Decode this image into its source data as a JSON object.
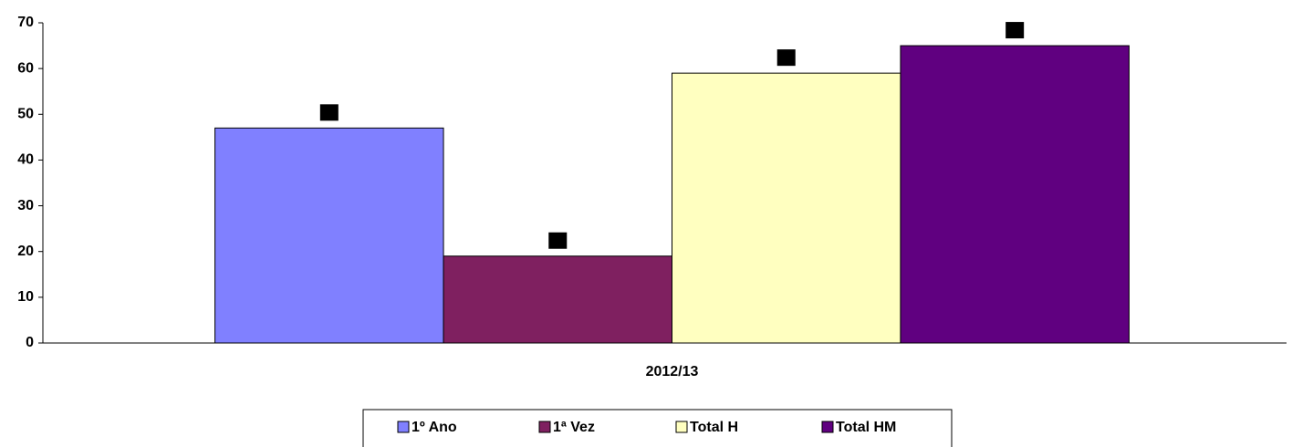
{
  "chart_data": {
    "type": "bar",
    "categories": [
      "2012/13"
    ],
    "series": [
      {
        "name": "1º Ano",
        "color": "#8080ff",
        "values": [
          47
        ]
      },
      {
        "name": "1ª Vez",
        "color": "#7f2060",
        "values": [
          19
        ]
      },
      {
        "name": "Total H",
        "color": "#ffffc0",
        "values": [
          59
        ]
      },
      {
        "name": "Total HM",
        "color": "#600080",
        "values": [
          65
        ]
      }
    ],
    "ylim": [
      0,
      70
    ],
    "yticks": [
      0,
      10,
      20,
      30,
      40,
      50,
      60,
      70
    ],
    "grid": false,
    "legend": "bottom"
  }
}
